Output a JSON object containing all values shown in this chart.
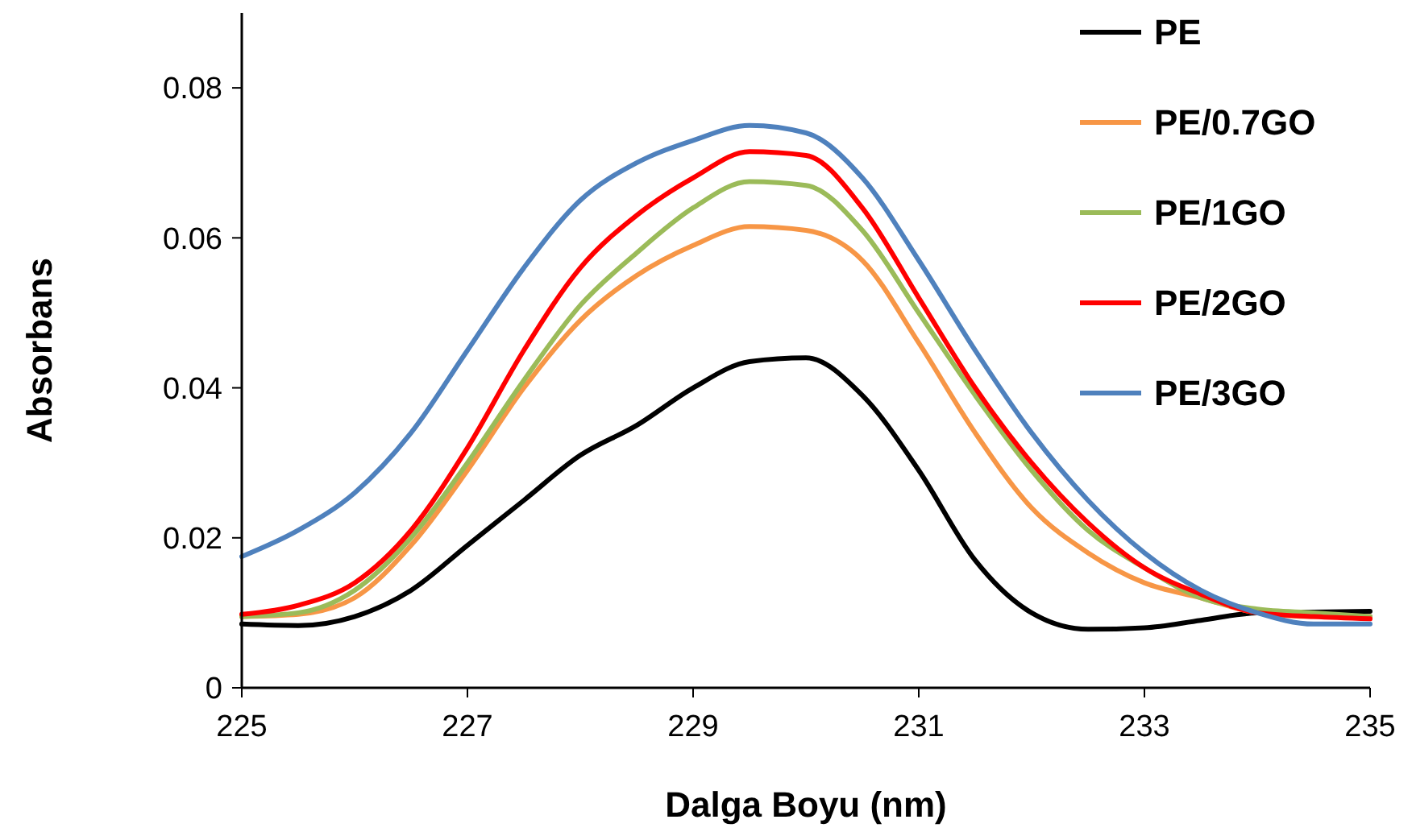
{
  "chart_data": {
    "type": "line",
    "xlabel": "Dalga Boyu (nm)",
    "ylabel": "Absorbans",
    "xlim": [
      225,
      235
    ],
    "ylim": [
      0,
      0.09
    ],
    "xticks": [
      225,
      227,
      229,
      231,
      233,
      235
    ],
    "yticks": [
      0,
      0.02,
      0.04,
      0.06,
      0.08
    ],
    "grid": false,
    "legend": "top right",
    "marker": "none",
    "line_style": "solid",
    "x": [
      225,
      225.5,
      226,
      226.5,
      227,
      227.5,
      228,
      228.5,
      229,
      229.5,
      230,
      230.5,
      231,
      231.5,
      232,
      232.5,
      233,
      233.5,
      234,
      234.5,
      235
    ],
    "series": [
      {
        "name": "PE",
        "color": "#000000",
        "values": [
          0.0085,
          0.0083,
          0.0095,
          0.013,
          0.019,
          0.025,
          0.031,
          0.035,
          0.04,
          0.0435,
          0.044,
          0.039,
          0.029,
          0.017,
          0.01,
          0.0078,
          0.008,
          0.009,
          0.01,
          0.0101,
          0.0102
        ]
      },
      {
        "name": "PE/0.7GO",
        "color": "#f79646",
        "values": [
          0.0095,
          0.0098,
          0.012,
          0.019,
          0.029,
          0.04,
          0.049,
          0.055,
          0.059,
          0.0615,
          0.061,
          0.057,
          0.046,
          0.034,
          0.024,
          0.018,
          0.014,
          0.012,
          0.01,
          0.0095,
          0.0095
        ]
      },
      {
        "name": "PE/1GO",
        "color": "#9bbb59",
        "values": [
          0.0095,
          0.01,
          0.013,
          0.02,
          0.03,
          0.041,
          0.051,
          0.058,
          0.064,
          0.0675,
          0.067,
          0.061,
          0.05,
          0.039,
          0.029,
          0.021,
          0.016,
          0.012,
          0.0105,
          0.01,
          0.0095
        ]
      },
      {
        "name": "PE/2GO",
        "color": "#ff0000",
        "values": [
          0.0098,
          0.011,
          0.014,
          0.021,
          0.032,
          0.045,
          0.056,
          0.063,
          0.068,
          0.0715,
          0.071,
          0.064,
          0.052,
          0.04,
          0.03,
          0.022,
          0.016,
          0.0125,
          0.01,
          0.0095,
          0.0092
        ]
      },
      {
        "name": "PE/3GO",
        "color": "#4f81bd",
        "values": [
          0.0175,
          0.021,
          0.026,
          0.034,
          0.045,
          0.056,
          0.065,
          0.07,
          0.073,
          0.075,
          0.074,
          0.068,
          0.057,
          0.045,
          0.034,
          0.025,
          0.018,
          0.013,
          0.01,
          0.0085,
          0.0085
        ]
      }
    ]
  }
}
